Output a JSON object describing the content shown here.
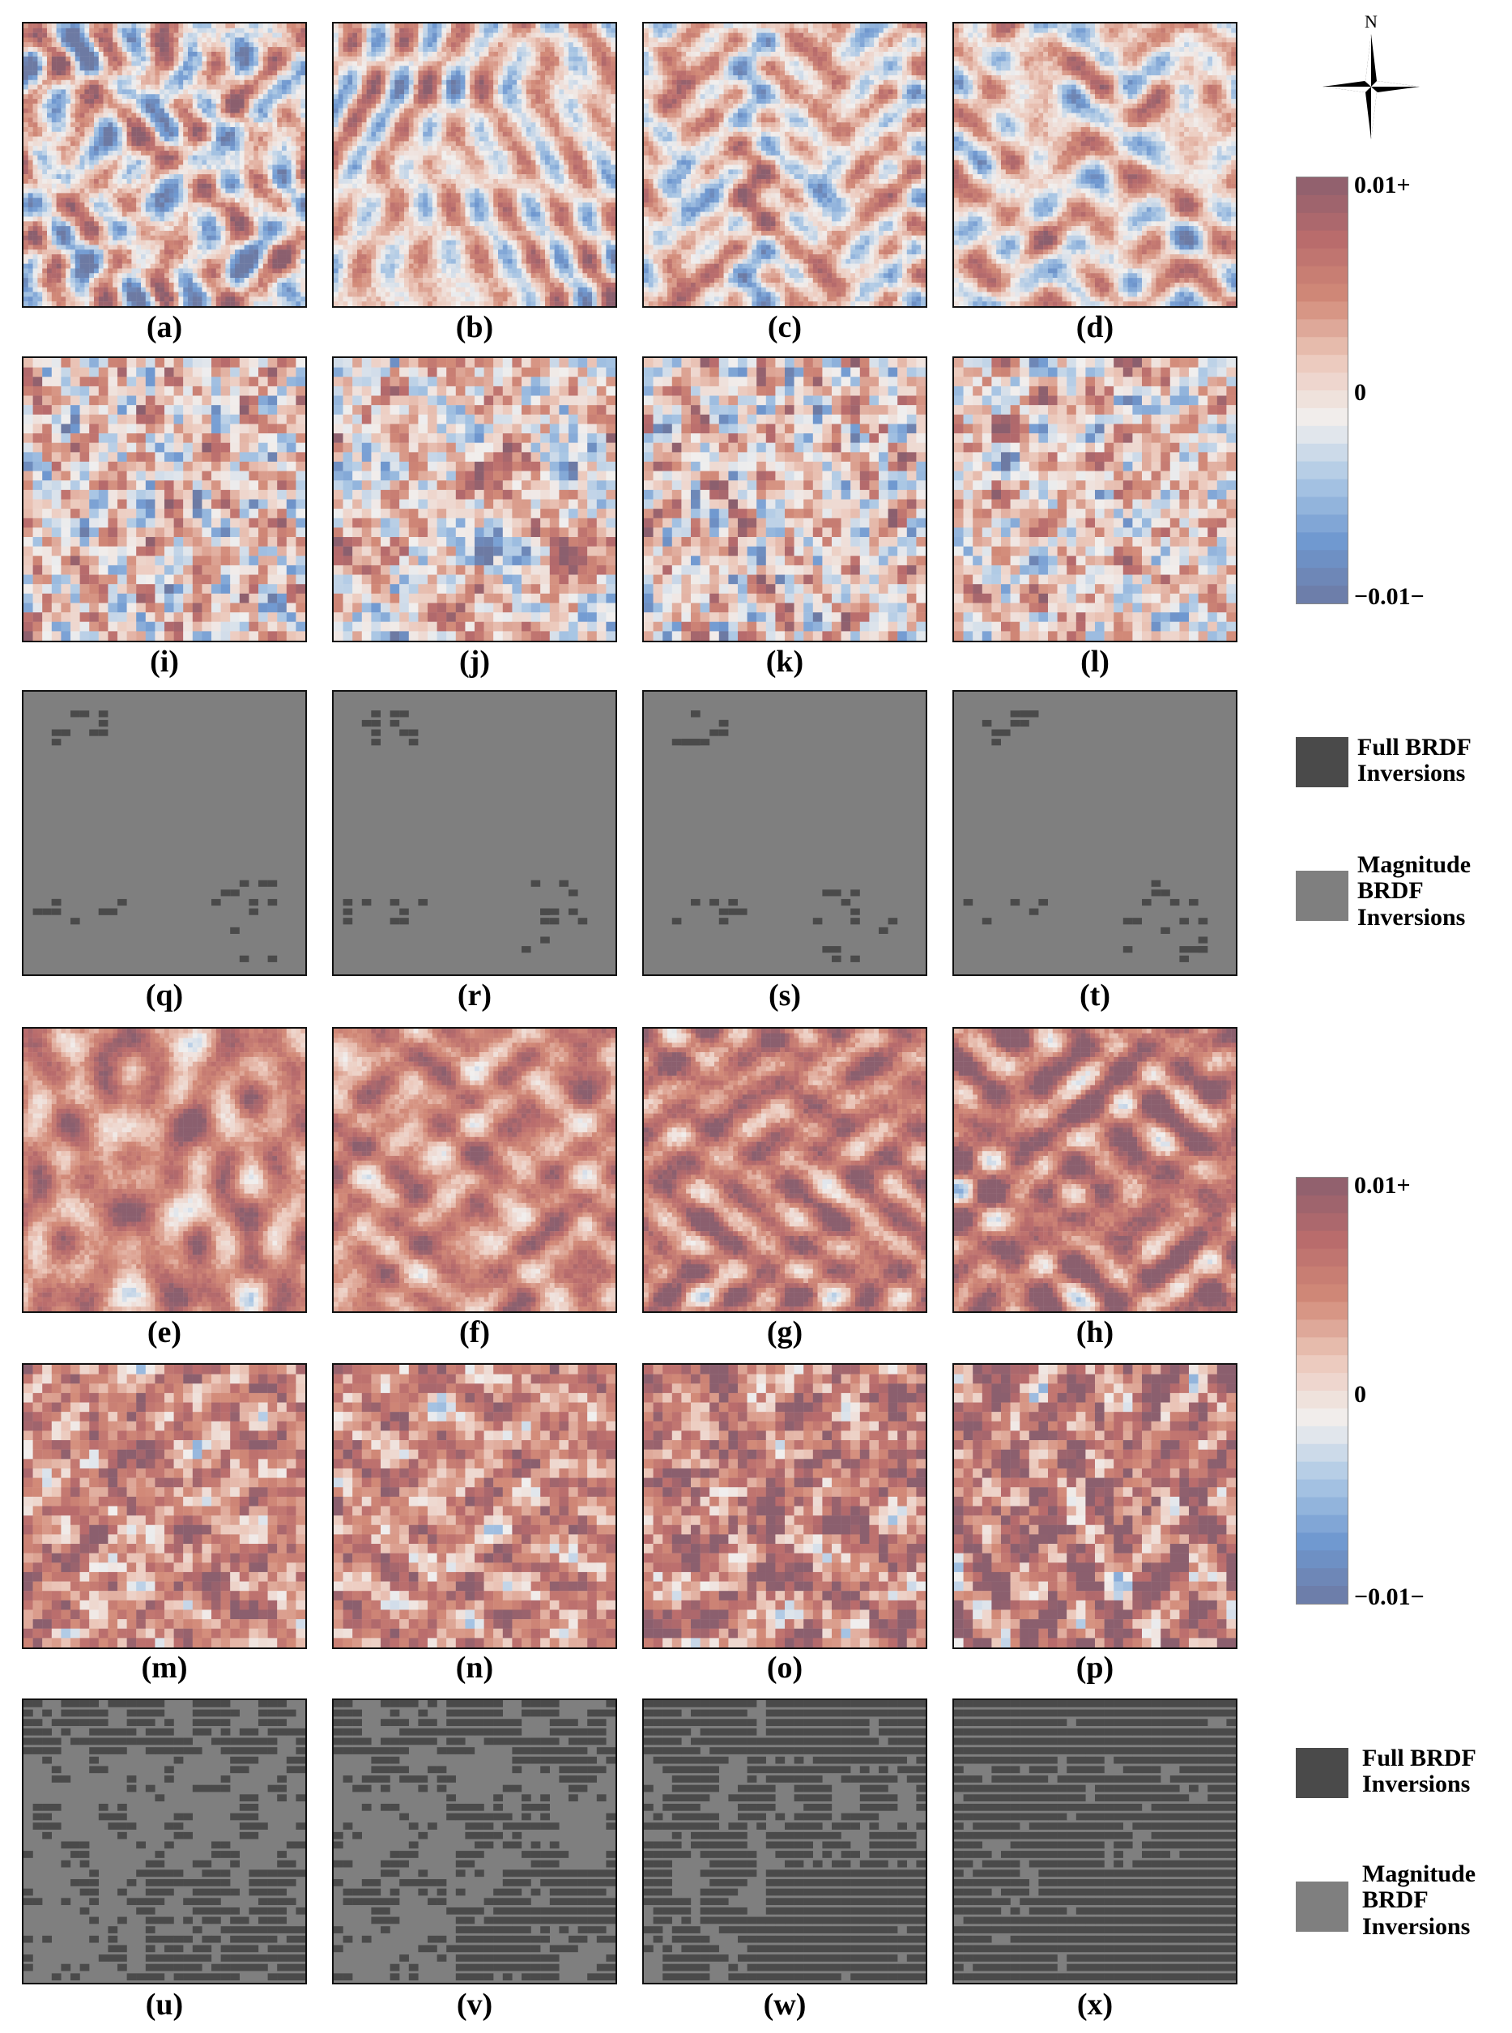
{
  "colors": {
    "strong_positive": "#8b5f6e",
    "positive": "#d28a78",
    "neutral": "#f1efee",
    "negative": "#6f98d0",
    "strong_negative": "#6d7aa3",
    "full_brdf": "#4a4a4a",
    "magnitude_brdf": "#7f7f7f"
  },
  "panel_labels": {
    "a": "(a)",
    "b": "(b)",
    "c": "(c)",
    "d": "(d)",
    "i": "(i)",
    "j": "(j)",
    "k": "(k)",
    "l": "(l)",
    "q": "(q)",
    "r": "(r)",
    "s": "(s)",
    "t": "(t)",
    "e": "(e)",
    "f": "(f)",
    "g": "(g)",
    "h": "(h)",
    "m": "(m)",
    "n": "(n)",
    "o": "(o)",
    "p": "(p)",
    "u": "(u)",
    "v": "(v)",
    "w": "(w)",
    "x": "(x)"
  },
  "colorbar_top": {
    "max_label": "0.01+",
    "zero_label": "0",
    "min_label": "−0.01−"
  },
  "colorbar_bottom": {
    "max_label": "0.01+",
    "zero_label": "0",
    "min_label": "−0.01−"
  },
  "legend_top": {
    "full_line1": "Full BRDF",
    "full_line2": "Inversions",
    "mag_line1": "Magnitude",
    "mag_line2": "BRDF",
    "mag_line3": "Inversions"
  },
  "legend_bottom": {
    "full_line1": "Full BRDF",
    "full_line2": "Inversions",
    "mag_line1": "Magnitude",
    "mag_line2": "BRDF",
    "mag_line3": "Inversions"
  },
  "compass": {
    "north_label": "N"
  }
}
